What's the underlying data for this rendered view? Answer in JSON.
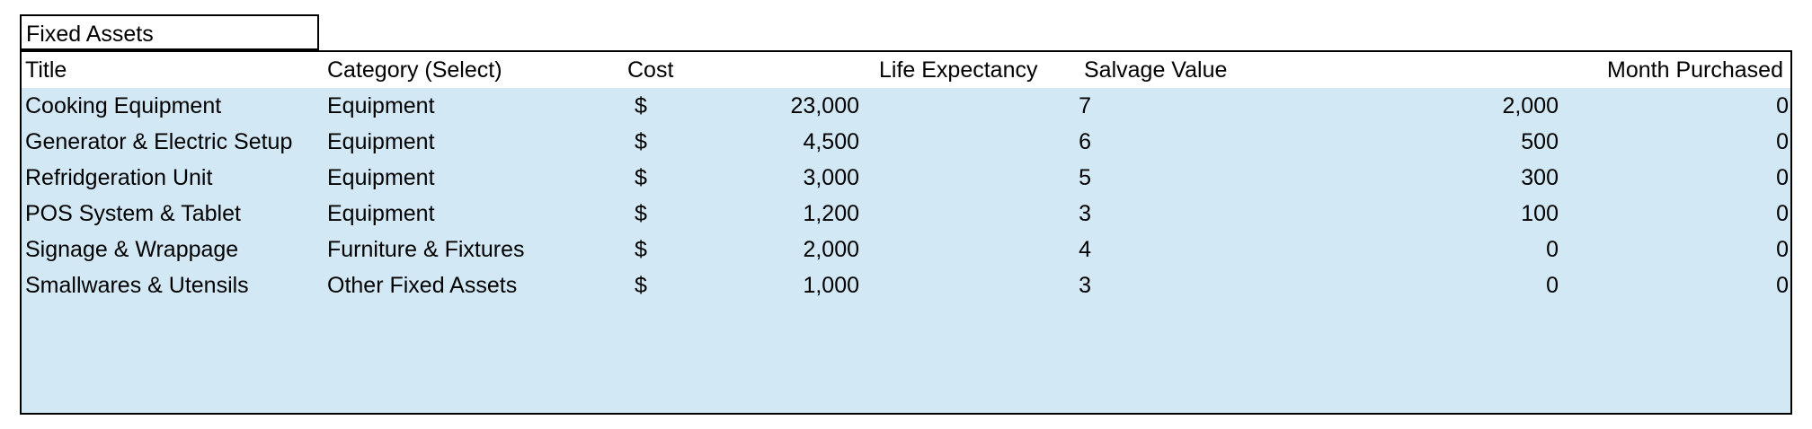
{
  "sheet": {
    "title_label": "Fixed Assets",
    "headers": {
      "title": "Title",
      "category": "Category (Select)",
      "cost": "Cost",
      "life": "Life Expectancy",
      "salvage": "Salvage Value",
      "month": "Month Purchased"
    },
    "rows": [
      {
        "title": "Cooking Equipment",
        "category": "Equipment",
        "currency": "$",
        "cost": "23,000",
        "life": "7",
        "salvage": "2,000",
        "month": "0"
      },
      {
        "title": "Generator & Electric Setup",
        "category": "Equipment",
        "currency": "$",
        "cost": "4,500",
        "life": "6",
        "salvage": "500",
        "month": "0"
      },
      {
        "title": "Refridgeration Unit",
        "category": "Equipment",
        "currency": "$",
        "cost": "3,000",
        "life": "5",
        "salvage": "300",
        "month": "0"
      },
      {
        "title": "POS System & Tablet",
        "category": "Equipment",
        "currency": "$",
        "cost": "1,200",
        "life": "3",
        "salvage": "100",
        "month": "0"
      },
      {
        "title": "Signage & Wrappage",
        "category": "Furniture & Fixtures",
        "currency": "$",
        "cost": "2,000",
        "life": "4",
        "salvage": "0",
        "month": "0"
      },
      {
        "title": "Smallwares & Utensils",
        "category": "Other Fixed Assets",
        "currency": "$",
        "cost": "1,000",
        "life": "3",
        "salvage": "0",
        "month": "0"
      }
    ]
  },
  "colors": {
    "table_fill": "#d2e8f4",
    "header_fill": "#ffffff",
    "border": "#000000"
  }
}
